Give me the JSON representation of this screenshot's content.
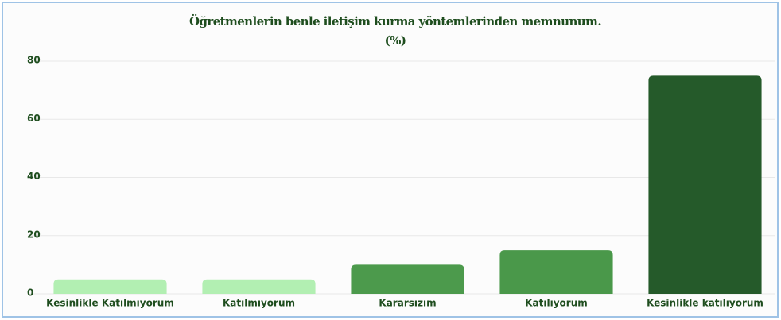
{
  "chart_data": {
    "type": "bar",
    "title": "Öğretmenlerin benle iletişim kurma yöntemlerinden memnunum.",
    "subtitle": "(%)",
    "categories": [
      "Kesinlikle Katılmıyorum",
      "Katılmıyorum",
      "Kararsızım",
      "Katılıyorum",
      "Kesinlikle katılıyorum"
    ],
    "values": [
      5,
      5,
      10,
      15,
      75
    ],
    "colors": [
      "#b2efb2",
      "#b2efb2",
      "#4c9a4c",
      "#4a984a",
      "#255a2a"
    ],
    "ylim": [
      0,
      80
    ],
    "yticks": [
      0,
      20,
      40,
      60,
      80
    ],
    "grid": true
  }
}
